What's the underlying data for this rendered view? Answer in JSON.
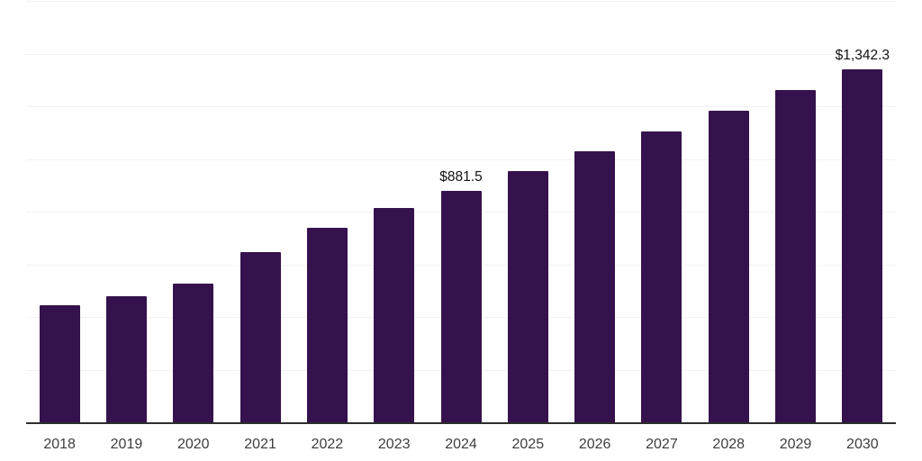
{
  "chart_data": {
    "type": "bar",
    "title": "",
    "categories": [
      "2018",
      "2019",
      "2020",
      "2021",
      "2022",
      "2023",
      "2024",
      "2025",
      "2026",
      "2027",
      "2028",
      "2029",
      "2030"
    ],
    "values": [
      448,
      482,
      530,
      648,
      742,
      816,
      881.5,
      957,
      1031,
      1107,
      1185,
      1265,
      1342.3
    ],
    "data_labels": [
      "",
      "",
      "",
      "",
      "",
      "",
      "$881.5",
      "",
      "",
      "",
      "",
      "",
      "$1,342.3"
    ],
    "xlabel": "",
    "ylabel": "",
    "ylim": [
      0,
      1600
    ],
    "gridline_step": 200,
    "grid": "horizontal, light, no y-axis tick labels",
    "legend": "none",
    "colors": {
      "bar": "#35124d",
      "gridline": "#f2f2f4",
      "axis_line": "#2e2e2e",
      "tick_label": "#3d3d3d",
      "data_label": "#111111",
      "background": "#ffffff"
    }
  }
}
